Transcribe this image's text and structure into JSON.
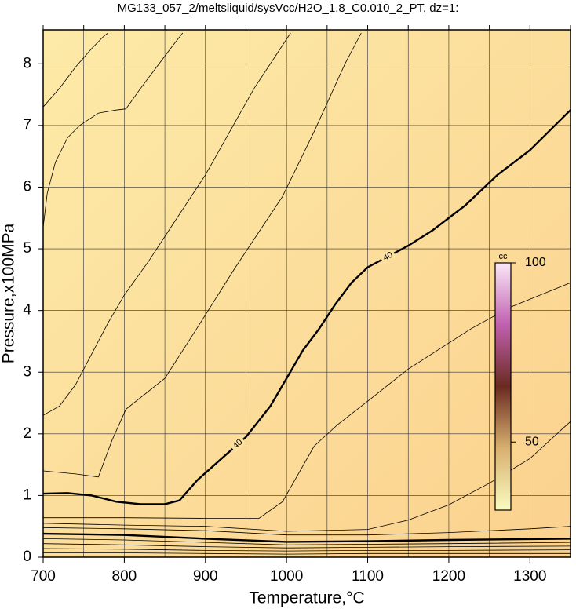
{
  "chart_data": {
    "type": "contour",
    "title": "MG133_057_2/meltsliquid/sysVcc/H2O_1.8_C0.010_2_PT, dz=1:",
    "x_label": "Temperature,°C",
    "y_label": "Pressure,x100MPa",
    "xlim": [
      700,
      1350
    ],
    "ylim": [
      0,
      8.5
    ],
    "xticks": [
      700,
      800,
      900,
      1000,
      1100,
      1200,
      1300
    ],
    "xgrid": [
      700,
      750,
      800,
      850,
      900,
      950,
      1000,
      1050,
      1100,
      1150,
      1200,
      1250,
      1300,
      1350
    ],
    "yticks": [
      0,
      1,
      2,
      3,
      4,
      5,
      6,
      7,
      8
    ],
    "grid": true,
    "colorbar": {
      "label": "cc",
      "lim": [
        31,
        100
      ],
      "ticks": [
        50,
        100
      ],
      "colors": [
        "#fbfbc0",
        "#d8b070",
        "#6a2a20",
        "#c060b0",
        "#fbe8f8"
      ]
    },
    "contours": [
      {
        "label": "40",
        "bold": true,
        "label_at": [
          940,
          1125
        ],
        "x": [
          700,
          730,
          760,
          790,
          820,
          850,
          868,
          890,
          920,
          950,
          980,
          1000,
          1020,
          1040,
          1060,
          1080,
          1100,
          1150,
          1180,
          1220,
          1260,
          1300,
          1350
        ],
        "y": [
          1.03,
          1.04,
          1.0,
          0.9,
          0.86,
          0.86,
          0.92,
          1.25,
          1.6,
          1.95,
          2.45,
          2.9,
          3.35,
          3.7,
          4.1,
          4.45,
          4.7,
          5.05,
          5.3,
          5.7,
          6.2,
          6.6,
          7.25
        ]
      },
      {
        "x": [
          700,
          705,
          715,
          730,
          745,
          768,
          790,
          802,
          820,
          840,
          860,
          872
        ],
        "y": [
          5.35,
          5.9,
          6.4,
          6.8,
          7.0,
          7.2,
          7.25,
          7.27,
          7.6,
          7.95,
          8.3,
          8.5
        ]
      },
      {
        "x": [
          700,
          720,
          740,
          760,
          775,
          780
        ],
        "y": [
          7.3,
          7.6,
          7.95,
          8.25,
          8.45,
          8.5
        ]
      },
      {
        "x": [
          700,
          720,
          740,
          760,
          780,
          800,
          830,
          860,
          900,
          930,
          960,
          990,
          1005
        ],
        "y": [
          2.3,
          2.45,
          2.8,
          3.3,
          3.8,
          4.25,
          4.8,
          5.4,
          6.2,
          6.9,
          7.6,
          8.2,
          8.5
        ]
      },
      {
        "x": [
          700,
          740,
          768,
          785,
          802,
          850,
          889,
          937,
          995,
          1034,
          1072,
          1092
        ],
        "y": [
          1.4,
          1.35,
          1.3,
          1.9,
          2.4,
          2.9,
          3.7,
          4.7,
          5.85,
          6.9,
          8.0,
          8.5
        ]
      },
      {
        "x": [
          700,
          800,
          900,
          966,
          995,
          1034,
          1063,
          1102,
          1150,
          1227,
          1275,
          1350
        ],
        "y": [
          0.64,
          0.64,
          0.63,
          0.63,
          0.9,
          1.8,
          2.15,
          2.55,
          3.05,
          3.7,
          4.05,
          4.45
        ]
      },
      {
        "x": [
          700,
          800,
          900,
          1000,
          1100,
          1150,
          1200,
          1250,
          1300,
          1350
        ],
        "y": [
          0.55,
          0.52,
          0.5,
          0.42,
          0.45,
          0.6,
          0.85,
          1.2,
          1.6,
          2.2
        ]
      },
      {
        "x": [
          700,
          800,
          900,
          1000,
          1100,
          1200,
          1300,
          1350
        ],
        "y": [
          0.48,
          0.46,
          0.43,
          0.36,
          0.36,
          0.4,
          0.46,
          0.5
        ]
      },
      {
        "bold": true,
        "x": [
          700,
          800,
          900,
          1000,
          1100,
          1200,
          1350
        ],
        "y": [
          0.38,
          0.36,
          0.3,
          0.25,
          0.26,
          0.28,
          0.3
        ]
      },
      {
        "x": [
          700,
          800,
          900,
          1000,
          1100,
          1200,
          1350
        ],
        "y": [
          0.3,
          0.28,
          0.24,
          0.2,
          0.21,
          0.22,
          0.24
        ]
      },
      {
        "x": [
          700,
          800,
          900,
          1000,
          1100,
          1200,
          1350
        ],
        "y": [
          0.22,
          0.2,
          0.17,
          0.15,
          0.16,
          0.17,
          0.18
        ]
      },
      {
        "x": [
          700,
          800,
          900,
          1000,
          1100,
          1200,
          1350
        ],
        "y": [
          0.14,
          0.13,
          0.11,
          0.1,
          0.11,
          0.11,
          0.12
        ]
      },
      {
        "x": [
          700,
          800,
          900,
          1000,
          1100,
          1200,
          1350
        ],
        "y": [
          0.07,
          0.07,
          0.06,
          0.05,
          0.06,
          0.06,
          0.06
        ]
      }
    ]
  }
}
